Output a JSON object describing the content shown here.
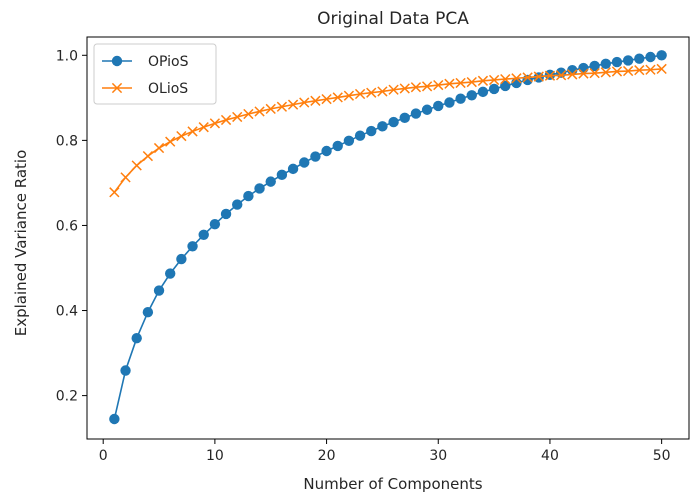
{
  "chart_data": {
    "type": "line",
    "title": "Original Data PCA",
    "xlabel": "Number of Components",
    "ylabel": "Explained Variance Ratio",
    "xlim": [
      -1.45,
      52.45
    ],
    "ylim": [
      0.098,
      1.043
    ],
    "xticks": [
      0,
      10,
      20,
      30,
      40,
      50
    ],
    "yticks": [
      0.2,
      0.4,
      0.6,
      0.8,
      1.0
    ],
    "grid": false,
    "legend_position": "top-left",
    "x": [
      1,
      2,
      3,
      4,
      5,
      6,
      7,
      8,
      9,
      10,
      11,
      12,
      13,
      14,
      15,
      16,
      17,
      18,
      19,
      20,
      21,
      22,
      23,
      24,
      25,
      26,
      27,
      28,
      29,
      30,
      31,
      32,
      33,
      34,
      35,
      36,
      37,
      38,
      39,
      40,
      41,
      42,
      43,
      44,
      45,
      46,
      47,
      48,
      49,
      50
    ],
    "series": [
      {
        "name": "OPioS",
        "color": "#1f77b4",
        "marker": "circle",
        "values": [
          0.145,
          0.259,
          0.335,
          0.396,
          0.447,
          0.487,
          0.521,
          0.551,
          0.578,
          0.603,
          0.627,
          0.649,
          0.669,
          0.687,
          0.703,
          0.719,
          0.733,
          0.748,
          0.762,
          0.775,
          0.787,
          0.799,
          0.811,
          0.822,
          0.833,
          0.843,
          0.853,
          0.863,
          0.872,
          0.881,
          0.889,
          0.898,
          0.906,
          0.914,
          0.921,
          0.928,
          0.935,
          0.942,
          0.948,
          0.954,
          0.959,
          0.965,
          0.97,
          0.975,
          0.98,
          0.984,
          0.988,
          0.992,
          0.996,
          1.0
        ]
      },
      {
        "name": "OLioS",
        "color": "#ff7f0e",
        "marker": "x",
        "values": [
          0.678,
          0.713,
          0.741,
          0.763,
          0.782,
          0.797,
          0.81,
          0.821,
          0.831,
          0.84,
          0.848,
          0.855,
          0.862,
          0.868,
          0.874,
          0.879,
          0.884,
          0.889,
          0.893,
          0.897,
          0.901,
          0.905,
          0.909,
          0.912,
          0.915,
          0.919,
          0.922,
          0.925,
          0.927,
          0.93,
          0.933,
          0.935,
          0.937,
          0.94,
          0.942,
          0.944,
          0.946,
          0.948,
          0.95,
          0.952,
          0.953,
          0.955,
          0.957,
          0.958,
          0.96,
          0.962,
          0.963,
          0.965,
          0.966,
          0.968
        ]
      }
    ]
  }
}
